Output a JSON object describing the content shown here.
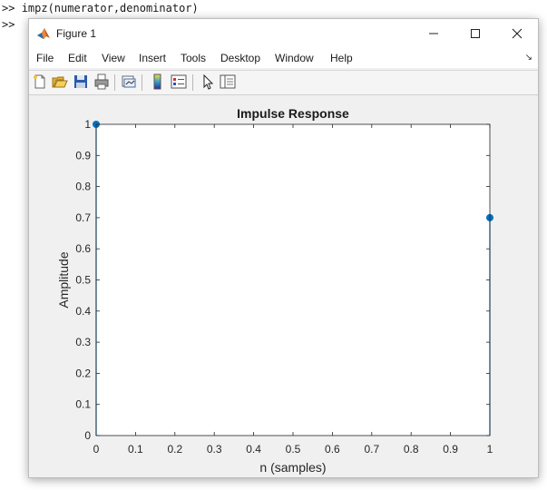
{
  "console": {
    "prompt": ">>",
    "command": "impz(numerator,denominator)"
  },
  "window": {
    "title": "Figure 1",
    "minimize_icon": "minimize-icon",
    "maximize_icon": "maximize-icon",
    "close_icon": "close-icon"
  },
  "menu": {
    "items": [
      "File",
      "Edit",
      "View",
      "Insert",
      "Tools",
      "Desktop",
      "Window",
      "Help"
    ]
  },
  "toolbar": {
    "icons": [
      "new-figure-icon",
      "open-file-icon",
      "save-icon",
      "print-icon",
      "link-plot-icon",
      "insert-colorbar-icon",
      "insert-legend-icon",
      "edit-plot-icon",
      "property-inspector-icon"
    ]
  },
  "chart_data": {
    "type": "stem",
    "title": "Impulse Response",
    "xlabel": "n (samples)",
    "ylabel": "Amplitude",
    "xlim": [
      0,
      1
    ],
    "ylim": [
      0,
      1
    ],
    "x": [
      0,
      1
    ],
    "y": [
      1,
      0.7
    ],
    "xticks": [
      "0",
      "0.1",
      "0.2",
      "0.3",
      "0.4",
      "0.5",
      "0.6",
      "0.7",
      "0.8",
      "0.9",
      "1"
    ],
    "yticks": [
      "0",
      "0.1",
      "0.2",
      "0.3",
      "0.4",
      "0.5",
      "0.6",
      "0.7",
      "0.8",
      "0.9",
      "1"
    ],
    "marker_color": "#0072bd",
    "grid": false
  }
}
